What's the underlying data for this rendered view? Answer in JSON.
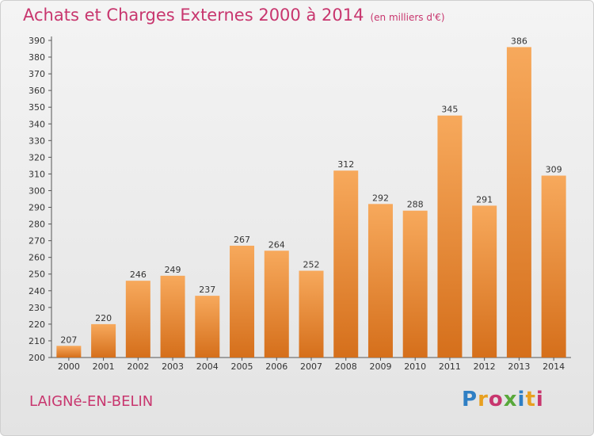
{
  "header": {
    "title": "Achats et Charges Externes 2000 à 2014",
    "subtitle": "(en milliers d'€)"
  },
  "footer": {
    "town": "LAIGNé-EN-BELIN",
    "logo_text": "Proxiti"
  },
  "colors": {
    "accent": "#c8366e",
    "bar_top": "#f7a95c",
    "bar_bottom": "#d56f1b"
  },
  "chart_data": {
    "type": "bar",
    "categories": [
      "2000",
      "2001",
      "2002",
      "2003",
      "2004",
      "2005",
      "2006",
      "2007",
      "2008",
      "2009",
      "2010",
      "2011",
      "2012",
      "2013",
      "2014"
    ],
    "values": [
      207,
      220,
      246,
      249,
      237,
      267,
      264,
      252,
      312,
      292,
      288,
      345,
      291,
      386,
      309
    ],
    "title": "Achats et Charges Externes 2000 à 2014",
    "subtitle": "(en milliers d'€)",
    "xlabel": "",
    "ylabel": "",
    "ylim": [
      200,
      390
    ],
    "ytick_step": 10,
    "grid": false,
    "legend": "none"
  }
}
